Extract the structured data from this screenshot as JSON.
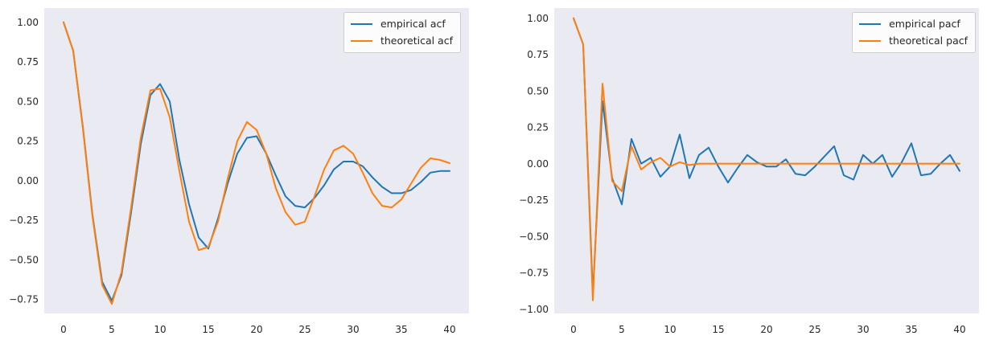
{
  "figure": {
    "type": "matplotlib-figure",
    "background": "#ffffff",
    "plot_background": "#eaeaf2",
    "grid": false
  },
  "colors": {
    "empirical": "#1f77b4",
    "theoretical": "#ff7f0e",
    "tick_text": "#262626",
    "legend_border": "#cccccc",
    "plot_bg": "#eaeaf2"
  },
  "chart_data": [
    {
      "type": "line",
      "title": "",
      "xlabel": "",
      "ylabel": "",
      "xlim": [
        -2,
        42
      ],
      "ylim": [
        -0.84,
        1.09
      ],
      "grid": false,
      "legend_position": "upper right",
      "x_ticks": [
        0,
        5,
        10,
        15,
        20,
        25,
        30,
        35,
        40
      ],
      "y_ticks": [
        {
          "label": "1.00",
          "value": 1.0
        },
        {
          "label": "0.75",
          "value": 0.75
        },
        {
          "label": "0.50",
          "value": 0.5
        },
        {
          "label": "0.25",
          "value": 0.25
        },
        {
          "label": "0.00",
          "value": 0.0
        },
        {
          "label": "−0.25",
          "value": -0.25
        },
        {
          "label": "−0.50",
          "value": -0.5
        },
        {
          "label": "−0.75",
          "value": -0.75
        }
      ],
      "x": [
        0,
        1,
        2,
        3,
        4,
        5,
        6,
        7,
        8,
        9,
        10,
        11,
        12,
        13,
        14,
        15,
        16,
        17,
        18,
        19,
        20,
        21,
        22,
        23,
        24,
        25,
        26,
        27,
        28,
        29,
        30,
        31,
        32,
        33,
        34,
        35,
        36,
        37,
        38,
        39,
        40
      ],
      "series": [
        {
          "name": "empirical acf",
          "color_key": "empirical",
          "values": [
            1.0,
            0.82,
            0.34,
            -0.22,
            -0.64,
            -0.76,
            -0.6,
            -0.2,
            0.23,
            0.54,
            0.61,
            0.5,
            0.13,
            -0.15,
            -0.36,
            -0.43,
            -0.24,
            -0.02,
            0.17,
            0.27,
            0.28,
            0.17,
            0.03,
            -0.1,
            -0.16,
            -0.17,
            -0.11,
            -0.03,
            0.07,
            0.12,
            0.12,
            0.09,
            0.02,
            -0.04,
            -0.08,
            -0.08,
            -0.06,
            -0.01,
            0.05,
            0.06,
            0.06
          ]
        },
        {
          "name": "theoretical acf",
          "color_key": "theoretical",
          "values": [
            1.0,
            0.82,
            0.33,
            -0.23,
            -0.66,
            -0.78,
            -0.58,
            -0.17,
            0.27,
            0.57,
            0.58,
            0.4,
            0.06,
            -0.26,
            -0.44,
            -0.42,
            -0.26,
            0.01,
            0.25,
            0.37,
            0.32,
            0.17,
            -0.05,
            -0.2,
            -0.28,
            -0.26,
            -0.1,
            0.07,
            0.19,
            0.22,
            0.17,
            0.05,
            -0.08,
            -0.16,
            -0.17,
            -0.12,
            -0.02,
            0.08,
            0.14,
            0.13,
            0.11
          ]
        }
      ]
    },
    {
      "type": "line",
      "title": "",
      "xlabel": "",
      "ylabel": "",
      "xlim": [
        -2,
        42
      ],
      "ylim": [
        -1.03,
        1.07
      ],
      "grid": false,
      "legend_position": "upper right",
      "x_ticks": [
        0,
        5,
        10,
        15,
        20,
        25,
        30,
        35,
        40
      ],
      "y_ticks": [
        {
          "label": "1.00",
          "value": 1.0
        },
        {
          "label": "0.75",
          "value": 0.75
        },
        {
          "label": "0.50",
          "value": 0.5
        },
        {
          "label": "0.25",
          "value": 0.25
        },
        {
          "label": "0.00",
          "value": 0.0
        },
        {
          "label": "−0.25",
          "value": -0.25
        },
        {
          "label": "−0.50",
          "value": -0.5
        },
        {
          "label": "−0.75",
          "value": -0.75
        },
        {
          "label": "−1.00",
          "value": -1.0
        }
      ],
      "x": [
        0,
        1,
        2,
        3,
        4,
        5,
        6,
        7,
        8,
        9,
        10,
        11,
        12,
        13,
        14,
        15,
        16,
        17,
        18,
        19,
        20,
        21,
        22,
        23,
        24,
        25,
        26,
        27,
        28,
        29,
        30,
        31,
        32,
        33,
        34,
        35,
        36,
        37,
        38,
        39,
        40
      ],
      "series": [
        {
          "name": "empirical pacf",
          "color_key": "empirical",
          "values": [
            1.0,
            0.82,
            -0.9,
            0.43,
            -0.1,
            -0.28,
            0.17,
            0.0,
            0.04,
            -0.09,
            -0.02,
            0.2,
            -0.1,
            0.06,
            0.11,
            -0.02,
            -0.13,
            -0.03,
            0.06,
            0.01,
            -0.02,
            -0.02,
            0.03,
            -0.07,
            -0.08,
            -0.02,
            0.05,
            0.12,
            -0.08,
            -0.11,
            0.06,
            0.0,
            0.06,
            -0.09,
            0.01,
            0.14,
            -0.08,
            -0.07,
            0.0,
            0.06,
            -0.05
          ]
        },
        {
          "name": "theoretical pacf",
          "color_key": "theoretical",
          "values": [
            1.0,
            0.82,
            -0.94,
            0.55,
            -0.12,
            -0.19,
            0.12,
            -0.04,
            0.01,
            0.04,
            -0.02,
            0.01,
            -0.01,
            0.0,
            0.0,
            0.0,
            0.0,
            0.0,
            0.0,
            0.0,
            0.0,
            0.0,
            0.0,
            0.0,
            0.0,
            0.0,
            0.0,
            0.0,
            0.0,
            0.0,
            0.0,
            0.0,
            0.0,
            0.0,
            0.0,
            0.0,
            0.0,
            0.0,
            0.0,
            0.0,
            0.0
          ]
        }
      ]
    }
  ]
}
